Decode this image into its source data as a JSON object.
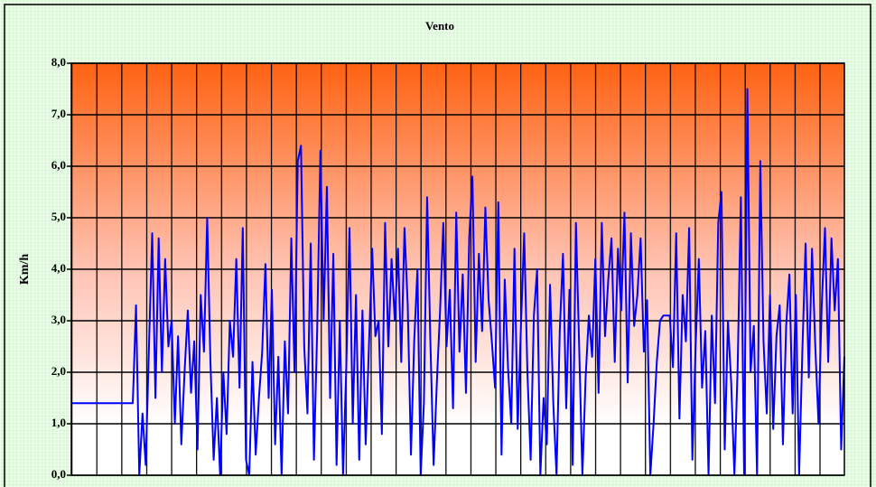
{
  "chart_data": {
    "type": "line",
    "title": "Vento",
    "y_label": "Km/h",
    "color": "#0000ff",
    "ylim": [
      0,
      8
    ],
    "yticks": [
      {
        "value": 0,
        "label": "0,0"
      },
      {
        "value": 1,
        "label": "1,0"
      },
      {
        "value": 2,
        "label": "2,0"
      },
      {
        "value": 3,
        "label": "3,0"
      },
      {
        "value": 4,
        "label": "4,0"
      },
      {
        "value": 5,
        "label": "5,0"
      },
      {
        "value": 6,
        "label": "6,0"
      },
      {
        "value": 7,
        "label": "7,0"
      },
      {
        "value": 8,
        "label": "8,0"
      }
    ],
    "grid": true,
    "values": [
      1.4,
      1.4,
      1.4,
      1.4,
      1.4,
      1.4,
      1.4,
      1.4,
      1.4,
      1.4,
      1.4,
      1.4,
      1.4,
      1.4,
      1.4,
      1.4,
      1.4,
      1.4,
      1.4,
      1.4,
      3.3,
      0.0,
      1.2,
      0.2,
      2.5,
      4.7,
      1.5,
      4.6,
      2.0,
      4.2,
      2.5,
      3.0,
      1.0,
      2.7,
      0.6,
      2.0,
      3.2,
      1.6,
      2.6,
      0.5,
      3.5,
      2.4,
      5.0,
      2.2,
      0.3,
      1.5,
      0.0,
      2.0,
      0.8,
      3.0,
      2.3,
      4.2,
      1.7,
      4.8,
      0.3,
      0.0,
      2.2,
      0.4,
      1.5,
      2.4,
      4.1,
      1.5,
      3.6,
      0.6,
      2.3,
      0.0,
      2.6,
      1.2,
      4.6,
      2.0,
      6.1,
      6.4,
      2.5,
      1.2,
      4.5,
      0.3,
      2.8,
      6.3,
      3.0,
      5.6,
      1.5,
      4.3,
      0.2,
      3.0,
      0.0,
      2.1,
      4.8,
      1.0,
      3.5,
      0.3,
      3.2,
      0.6,
      2.5,
      4.4,
      2.7,
      3.0,
      0.8,
      4.9,
      2.5,
      4.2,
      3.0,
      4.4,
      2.2,
      4.8,
      3.3,
      0.4,
      2.6,
      4.0,
      0.0,
      1.4,
      5.4,
      2.6,
      0.2,
      1.8,
      3.2,
      4.9,
      2.5,
      3.6,
      1.3,
      5.1,
      2.4,
      3.9,
      1.6,
      4.6,
      5.8,
      2.2,
      4.3,
      2.8,
      5.2,
      3.4,
      2.6,
      1.7,
      5.3,
      0.4,
      3.8,
      2.1,
      1.0,
      4.4,
      0.9,
      2.9,
      4.7,
      2.0,
      0.3,
      3.1,
      4.0,
      0.0,
      1.5,
      0.6,
      3.7,
      1.4,
      0.0,
      2.8,
      4.3,
      1.3,
      3.6,
      0.2,
      4.9,
      2.5,
      0.0,
      1.9,
      3.1,
      2.3,
      4.2,
      1.6,
      4.9,
      2.7,
      3.8,
      4.6,
      2.2,
      4.4,
      3.2,
      5.1,
      1.8,
      4.7,
      2.9,
      3.5,
      4.6,
      2.4,
      3.4,
      0.0,
      1.0,
      2.2,
      3.0,
      3.1,
      3.1,
      3.1,
      2.1,
      4.7,
      1.1,
      3.5,
      2.6,
      4.8,
      0.3,
      2.5,
      4.2,
      1.7,
      2.8,
      0.0,
      3.1,
      1.4,
      4.9,
      5.5,
      0.5,
      3.0,
      1.8,
      0.0,
      2.1,
      5.4,
      0.0,
      7.5,
      2.0,
      2.9,
      0.0,
      6.1,
      2.6,
      1.2,
      3.5,
      0.9,
      2.7,
      3.3,
      0.6,
      2.9,
      3.9,
      1.2,
      3.5,
      0.0,
      2.4,
      4.5,
      1.9,
      4.4,
      2.5,
      1.0,
      3.3,
      4.8,
      2.2,
      4.6,
      3.2,
      4.2,
      0.5,
      2.3
    ]
  }
}
